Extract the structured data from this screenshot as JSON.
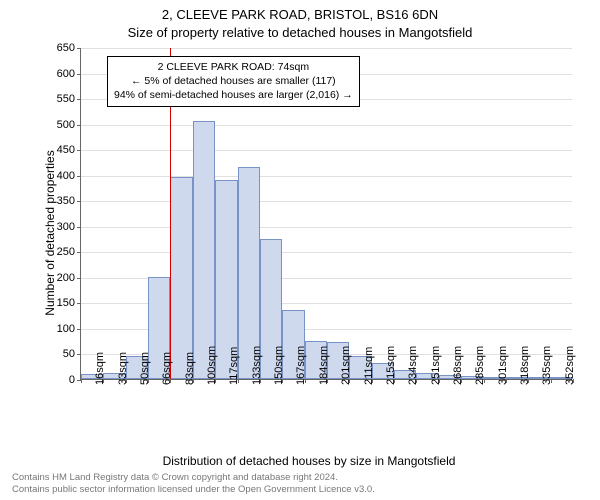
{
  "header": {
    "address": "2, CLEEVE PARK ROAD, BRISTOL, BS16 6DN",
    "subtitle": "Size of property relative to detached houses in Mangotsfield"
  },
  "chart": {
    "type": "histogram",
    "y_axis_label": "Number of detached properties",
    "x_axis_label": "Distribution of detached houses by size in Mangotsfield",
    "ylim": [
      0,
      650
    ],
    "ytick_step": 50,
    "background_color": "#ffffff",
    "grid_color": "#e0e0e0",
    "axis_color": "#666666",
    "bar_fill": "#cfd9ee",
    "bar_border": "#7a93c6",
    "marker_color": "#d40000",
    "marker_value_sqm": 74,
    "x_categories": [
      "16sqm",
      "33sqm",
      "50sqm",
      "66sqm",
      "83sqm",
      "100sqm",
      "117sqm",
      "133sqm",
      "150sqm",
      "167sqm",
      "184sqm",
      "201sqm",
      "211sqm",
      "215sqm",
      "234sqm",
      "251sqm",
      "268sqm",
      "285sqm",
      "301sqm",
      "318sqm",
      "335sqm",
      "352sqm"
    ],
    "values": [
      10,
      12,
      45,
      200,
      395,
      505,
      390,
      415,
      275,
      135,
      75,
      72,
      45,
      32,
      18,
      12,
      8,
      5,
      4,
      3,
      2,
      2
    ],
    "bar_width_ratio": 1.0,
    "annotation": {
      "line1": "2 CLEEVE PARK ROAD: 74sqm",
      "line2": "← 5% of detached houses are smaller (117)",
      "line3": "94% of semi-detached houses are larger (2,016) →",
      "border_color": "#000000",
      "bg_color": "#ffffff"
    }
  },
  "footer": {
    "line1": "Contains HM Land Registry data © Crown copyright and database right 2024.",
    "line2": "Contains public sector information licensed under the Open Government Licence v3.0."
  }
}
